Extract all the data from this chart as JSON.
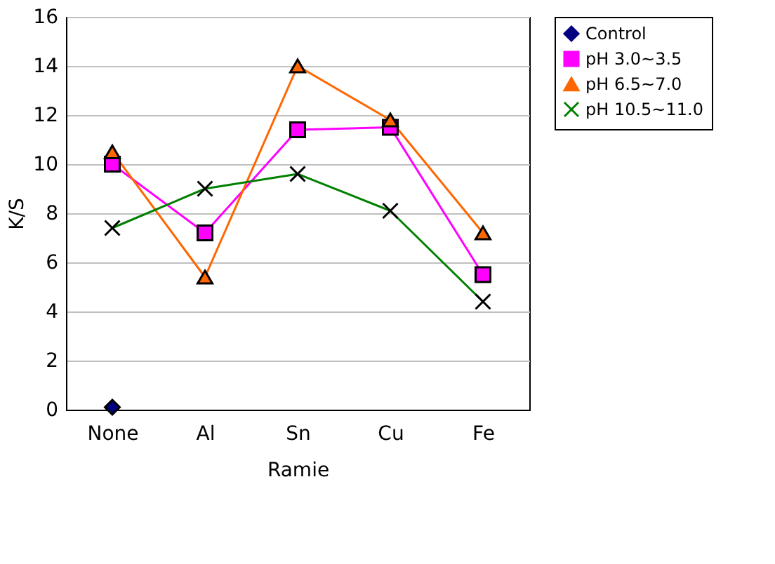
{
  "chart_data": {
    "type": "line",
    "xlabel": "Ramie",
    "ylabel": "K/S",
    "categories": [
      "None",
      "Al",
      "Sn",
      "Cu",
      "Fe"
    ],
    "series": [
      {
        "name": "Control",
        "color": "#000080",
        "marker": "diamond",
        "values": [
          0.1,
          null,
          null,
          null,
          null
        ]
      },
      {
        "name": "pH 3.0~3.5",
        "color": "#ff00ff",
        "marker": "square",
        "values": [
          10.0,
          7.2,
          11.4,
          11.5,
          5.5
        ]
      },
      {
        "name": "pH 6.5~7.0",
        "color": "#ff6600",
        "marker": "triangle",
        "values": [
          10.5,
          5.4,
          14.0,
          11.8,
          7.2
        ]
      },
      {
        "name": "pH 10.5~11.0",
        "color": "#008000",
        "marker": "cross",
        "values": [
          7.4,
          9.0,
          9.6,
          8.1,
          4.4
        ]
      }
    ],
    "ylim": [
      0,
      16
    ],
    "yticks": [
      0,
      2,
      4,
      6,
      8,
      10,
      12,
      14,
      16
    ],
    "grid": "y",
    "legend": "top right"
  }
}
